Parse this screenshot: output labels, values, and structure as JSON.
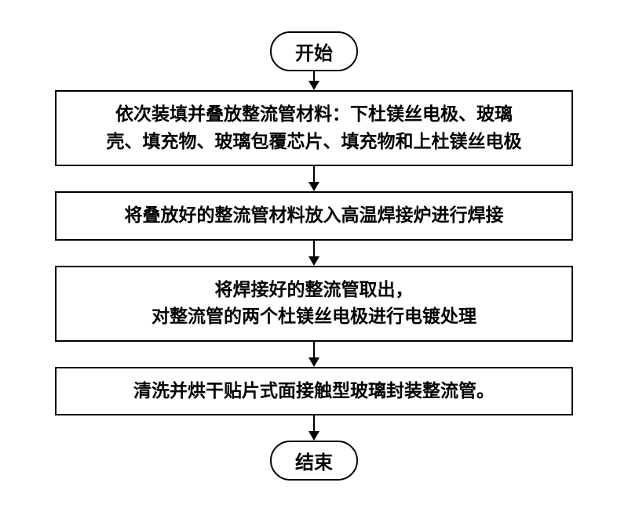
{
  "flowchart": {
    "type": "flowchart",
    "background_color": "#ffffff",
    "border_color": "#000000",
    "text_color": "#000000",
    "font_family": "SimSun",
    "nodes": {
      "start": {
        "type": "terminal",
        "label": "开始"
      },
      "step1": {
        "type": "process",
        "line1": "依次装填并叠放整流管材料：下杜镁丝电极、玻璃",
        "line2": "壳、填充物、玻璃包覆芯片、填充物和上杜镁丝电极"
      },
      "step2": {
        "type": "process",
        "label": "将叠放好的整流管材料放入高温焊接炉进行焊接"
      },
      "step3": {
        "type": "process",
        "line1": "将焊接好的整流管取出，",
        "line2": "对整流管的两个杜镁丝电极进行电镀处理"
      },
      "step4": {
        "type": "process",
        "label": "清洗并烘干贴片式面接触型玻璃封装整流管。"
      },
      "end": {
        "type": "terminal",
        "label": "结束"
      }
    },
    "edges": [
      {
        "from": "start",
        "to": "step1"
      },
      {
        "from": "step1",
        "to": "step2"
      },
      {
        "from": "step2",
        "to": "step3"
      },
      {
        "from": "step3",
        "to": "step4"
      },
      {
        "from": "step4",
        "to": "end"
      }
    ],
    "styling": {
      "border_width": 2,
      "terminal_border_radius": 50,
      "font_size": 23,
      "font_weight": "bold",
      "line_height": 1.5,
      "arrow_height": 32,
      "arrow_head_size": 12
    }
  }
}
